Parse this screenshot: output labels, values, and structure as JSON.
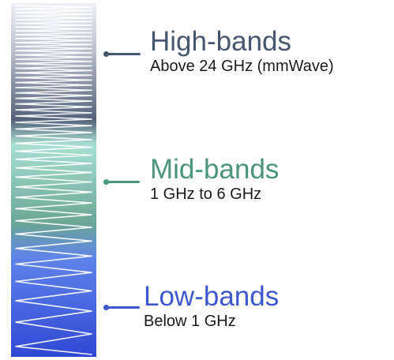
{
  "bands": [
    {
      "name": "High-bands",
      "range": "Above 24 GHz (mmWave)",
      "color": "#46566f"
    },
    {
      "name": "Mid-bands",
      "range": "1 GHz to 6 GHz",
      "color": "#4a9478"
    },
    {
      "name": "Low-bands",
      "range": "Below 1 GHz",
      "color": "#3c57cf"
    }
  ],
  "spectrum_bar": {
    "gradient": [
      "#eef0f6",
      "#b7bdca",
      "#55627a",
      "#a8e0d0",
      "#6aa794",
      "#5f84ea",
      "#3048d4"
    ],
    "wave_color": "#ffffff"
  }
}
